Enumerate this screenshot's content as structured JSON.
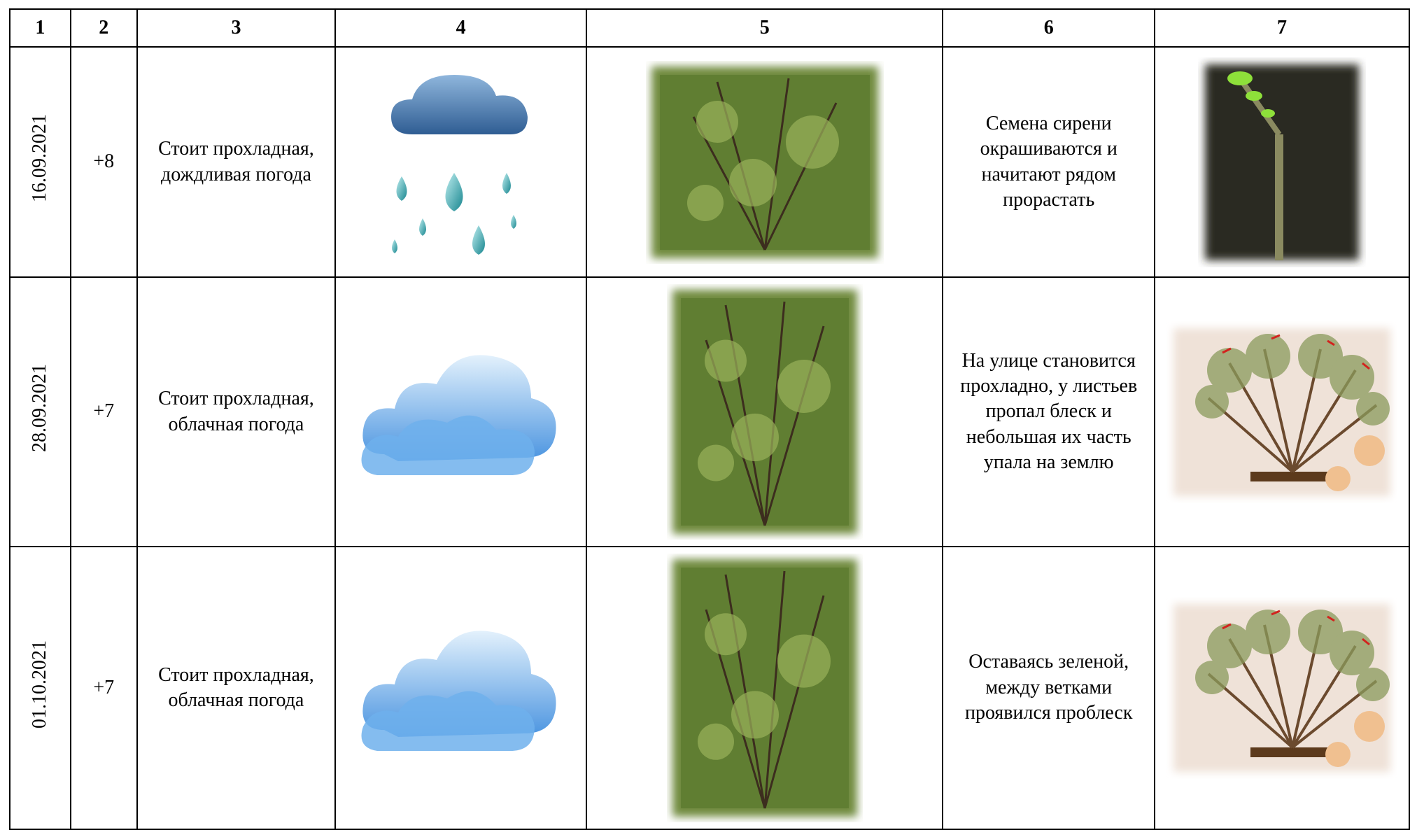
{
  "table": {
    "header": [
      "1",
      "2",
      "3",
      "4",
      "5",
      "6",
      "7"
    ],
    "rows": [
      {
        "date": "16.09.2021",
        "temp": "+8",
        "weather": "Стоит прохладная, дождливая погода",
        "note": "Семена сирени окрашиваются и начитают рядом прорастать"
      },
      {
        "date": "28.09.2021",
        "temp": "+7",
        "weather": "Стоит прохладная, облачная погода",
        "note": "На улице становится прохладно, у листьев пропал блеск и небольшая их часть упала на землю"
      },
      {
        "date": "01.10.2021",
        "temp": "+7",
        "weather": "Стоит прохладная, облачная погода",
        "note": "Оставаясь зеленой, между ветками проявился проблеск"
      }
    ]
  }
}
